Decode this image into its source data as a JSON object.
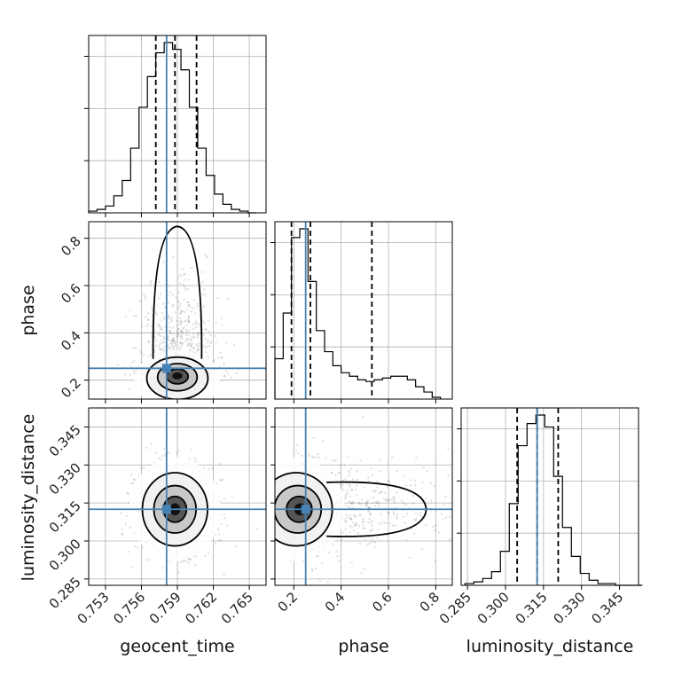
{
  "chart_data": {
    "type": "corner",
    "parameters": [
      "geocent_time",
      "phase",
      "luminosity_distance"
    ],
    "truths": {
      "geocent_time": 0.7581,
      "phase": 0.25,
      "luminosity_distance": 0.3125
    },
    "truth_color": "#4682b4",
    "grid": true,
    "axes": {
      "geocent_time": {
        "lim": [
          0.7516,
          0.7664
        ],
        "ticks": [
          0.753,
          0.756,
          0.759,
          0.762,
          0.765
        ],
        "tick_labels": [
          "0.753",
          "0.756",
          "0.759",
          "0.762",
          "0.765"
        ]
      },
      "phase": {
        "lim": [
          0.12,
          0.87
        ],
        "ticks": [
          0.2,
          0.4,
          0.6,
          0.8
        ],
        "tick_labels": [
          "0.2",
          "0.4",
          "0.6",
          "0.8"
        ]
      },
      "luminosity_distance": {
        "lim": [
          0.2825,
          0.3525
        ],
        "ticks": [
          0.285,
          0.3,
          0.315,
          0.33,
          0.345
        ],
        "tick_labels": [
          "0.285",
          "0.300",
          "0.315",
          "0.330",
          "0.345"
        ]
      }
    },
    "marginals": [
      {
        "parameter": "geocent_time",
        "quantiles": [
          0.7572,
          0.7588,
          0.7606
        ],
        "bin_edges": [
          0.7516,
          0.7523,
          0.753,
          0.7537,
          0.7544,
          0.7551,
          0.7558,
          0.7565,
          0.7572,
          0.7579,
          0.7586,
          0.7593,
          0.76,
          0.7607,
          0.7614,
          0.7621,
          0.7628,
          0.7635,
          0.7642,
          0.7649,
          0.7656
        ],
        "counts": [
          0.01,
          0.02,
          0.04,
          0.1,
          0.19,
          0.38,
          0.62,
          0.8,
          0.94,
          1.0,
          0.96,
          0.84,
          0.62,
          0.38,
          0.22,
          0.11,
          0.05,
          0.02,
          0.01,
          0.0
        ]
      },
      {
        "parameter": "phase",
        "quantiles": [
          0.19,
          0.27,
          0.53
        ],
        "bin_edges": [
          0.12,
          0.155,
          0.19,
          0.225,
          0.26,
          0.295,
          0.33,
          0.365,
          0.4,
          0.435,
          0.47,
          0.505,
          0.54,
          0.575,
          0.61,
          0.645,
          0.68,
          0.715,
          0.75,
          0.785,
          0.82
        ],
        "counts": [
          0.23,
          0.49,
          0.92,
          0.97,
          0.67,
          0.39,
          0.27,
          0.19,
          0.15,
          0.13,
          0.11,
          0.1,
          0.11,
          0.12,
          0.13,
          0.13,
          0.11,
          0.07,
          0.04,
          0.01
        ]
      },
      {
        "parameter": "luminosity_distance",
        "quantiles": [
          0.3046,
          0.3125,
          0.3208
        ],
        "bin_edges": [
          0.284,
          0.2875,
          0.291,
          0.2945,
          0.298,
          0.3015,
          0.305,
          0.3085,
          0.312,
          0.3155,
          0.319,
          0.3225,
          0.326,
          0.3295,
          0.333,
          0.3365,
          0.34,
          0.3435,
          0.347,
          0.3505,
          0.354
        ],
        "counts": [
          0.01,
          0.02,
          0.04,
          0.08,
          0.2,
          0.48,
          0.82,
          0.95,
          1.0,
          0.93,
          0.64,
          0.34,
          0.17,
          0.07,
          0.03,
          0.01,
          0.01,
          0.0,
          0.0,
          0.0
        ]
      }
    ],
    "joint": [
      {
        "x": "geocent_time",
        "y": "phase",
        "center": [
          0.759,
          0.22
        ],
        "spread": [
          0.0015,
          0.07
        ]
      },
      {
        "x": "geocent_time",
        "y": "luminosity_distance",
        "center": [
          0.7588,
          0.3125
        ],
        "spread": [
          0.0016,
          0.0085
        ]
      },
      {
        "x": "phase",
        "y": "luminosity_distance",
        "center": [
          0.23,
          0.3125
        ],
        "spread": [
          0.12,
          0.0085
        ]
      }
    ]
  }
}
